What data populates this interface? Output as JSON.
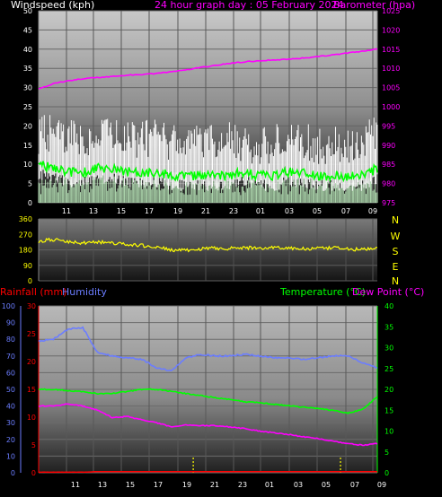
{
  "header": {
    "left_title": "Windspeed (kph)",
    "center_title": "24 hour graph day : 05 February 2024",
    "right_title": "Barometer (hpa)"
  },
  "wind_chart": {
    "title": "24 hour graph day : 05 February 2024",
    "left_axis_label": "Windspeed (kph)",
    "right_axis_label": "Barometer (hpa)",
    "x_ticks": [
      "11",
      "13",
      "15",
      "17",
      "19",
      "21",
      "23",
      "01",
      "03",
      "05",
      "07",
      "09"
    ],
    "left_ticks": [
      0,
      5,
      10,
      15,
      20,
      25,
      30,
      35,
      40,
      45,
      50
    ],
    "right_ticks": [
      975,
      980,
      985,
      990,
      995,
      1000,
      1005,
      1010,
      1015,
      1020,
      1025
    ],
    "colors": {
      "gust": "#ffffff",
      "avg_wind": "#00ff00",
      "light_wind": "#ccffcc",
      "barometer": "#ff00ff"
    },
    "chart_data": {
      "type": "line",
      "x": [
        "10:00",
        "11:00",
        "12:00",
        "13:00",
        "14:00",
        "15:00",
        "16:00",
        "17:00",
        "18:00",
        "19:00",
        "20:00",
        "21:00",
        "22:00",
        "23:00",
        "00:00",
        "01:00",
        "02:00",
        "03:00",
        "04:00",
        "05:00",
        "06:00",
        "07:00",
        "08:00",
        "09:00"
      ],
      "left_ylim": [
        0,
        50
      ],
      "right_ylim": [
        975,
        1025
      ],
      "series": [
        {
          "name": "Gust",
          "axis": "left",
          "values": [
            17,
            18,
            16,
            16,
            18,
            17,
            16,
            16,
            17,
            15,
            14,
            16,
            15,
            16,
            15,
            14,
            15,
            16,
            16,
            14,
            15,
            14,
            16,
            18
          ]
        },
        {
          "name": "Wind",
          "axis": "left",
          "values": [
            10,
            9,
            8,
            8,
            9,
            9,
            8,
            8,
            8,
            7,
            7,
            7,
            7,
            7,
            8,
            7,
            7,
            8,
            8,
            7,
            7,
            7,
            7,
            9
          ]
        },
        {
          "name": "Barometer",
          "axis": "right",
          "values": [
            1004.6,
            1006.0,
            1006.8,
            1007.3,
            1007.6,
            1007.9,
            1008.2,
            1008.4,
            1008.7,
            1009.1,
            1009.6,
            1010.2,
            1010.8,
            1011.3,
            1011.7,
            1012.0,
            1012.2,
            1012.4,
            1012.7,
            1013.1,
            1013.5,
            1014.0,
            1014.5,
            1015.0
          ]
        }
      ]
    }
  },
  "direction_chart": {
    "left_ticks": [
      0,
      90,
      180,
      270,
      360
    ],
    "right_labels": [
      "N",
      "W",
      "S",
      "E",
      "N"
    ],
    "series_color": "#ffff00",
    "chart_data": {
      "type": "line",
      "x": [
        "10:00",
        "11:00",
        "12:00",
        "13:00",
        "14:00",
        "15:00",
        "16:00",
        "17:00",
        "18:00",
        "19:00",
        "20:00",
        "21:00",
        "22:00",
        "23:00",
        "00:00",
        "01:00",
        "02:00",
        "03:00",
        "04:00",
        "05:00",
        "06:00",
        "07:00",
        "08:00",
        "09:00"
      ],
      "ylim": [
        0,
        360
      ],
      "series": [
        {
          "name": "Wind direction",
          "values": [
            230,
            240,
            225,
            220,
            225,
            220,
            210,
            205,
            195,
            180,
            175,
            185,
            190,
            188,
            192,
            190,
            195,
            190,
            185,
            188,
            190,
            185,
            182,
            188
          ]
        }
      ]
    }
  },
  "lower_chart": {
    "left_label_rain": "Rainfall (mm)",
    "left_label_humidity": "Humidity",
    "right_label_temp": "Temperature (°C)",
    "right_label_dew": "Dew Point (°C)",
    "x_ticks": [
      "11",
      "13",
      "15",
      "17",
      "19",
      "21",
      "23",
      "01",
      "03",
      "05",
      "07",
      "09"
    ],
    "humidity_ticks": [
      0,
      10,
      20,
      30,
      40,
      50,
      60,
      70,
      80,
      90,
      100
    ],
    "rain_ticks": [
      0,
      5,
      10,
      15,
      20,
      25,
      30
    ],
    "temp_ticks": [
      0,
      5,
      10,
      15,
      20,
      25,
      30,
      35,
      40
    ],
    "colors": {
      "rain": "#ff0000",
      "humidity": "#6b7dff",
      "temperature": "#00ff00",
      "dew_point": "#ff00ff",
      "rain_marker": "#ffff00"
    },
    "chart_data": {
      "type": "line",
      "x": [
        "10:00",
        "11:00",
        "12:00",
        "13:00",
        "14:00",
        "15:00",
        "16:00",
        "17:00",
        "18:00",
        "19:00",
        "20:00",
        "21:00",
        "22:00",
        "23:00",
        "00:00",
        "01:00",
        "02:00",
        "03:00",
        "04:00",
        "05:00",
        "06:00",
        "07:00",
        "08:00",
        "09:00"
      ],
      "humidity_ylim": [
        0,
        100
      ],
      "rain_ylim": [
        0,
        30
      ],
      "temp_ylim": [
        0,
        40
      ],
      "series": [
        {
          "name": "Humidity",
          "axis": "humidity",
          "values": [
            79,
            80,
            86,
            87,
            72,
            70,
            69,
            68,
            63,
            61,
            69,
            71,
            70,
            70,
            71,
            70,
            69,
            69,
            68,
            69,
            70,
            70,
            66,
            63
          ]
        },
        {
          "name": "Rainfall",
          "axis": "rain",
          "values": [
            0.1,
            0.1,
            0.1,
            0.1,
            0.2,
            0.2,
            0.2,
            0.2,
            0.2,
            0.2,
            0.2,
            0.2,
            0.2,
            0.2,
            0.2,
            0.2,
            0.2,
            0.2,
            0.2,
            0.2,
            0.2,
            0.2,
            0.2,
            0.2
          ]
        },
        {
          "name": "Temperature",
          "axis": "temp",
          "values": [
            20,
            20,
            19.7,
            19.4,
            19,
            19,
            19.5,
            20,
            20,
            19.5,
            19,
            18.5,
            18,
            17.6,
            17,
            16.8,
            16.4,
            16.1,
            15.7,
            15.4,
            15,
            14.3,
            15.2,
            18.2
          ]
        },
        {
          "name": "Dew Point",
          "axis": "temp",
          "values": [
            16,
            16,
            16.5,
            16,
            15,
            13.2,
            13.5,
            12.7,
            12,
            11,
            11.5,
            11.3,
            11.3,
            11,
            10.6,
            10,
            9.6,
            9.2,
            8.6,
            8.2,
            7.6,
            7,
            6.6,
            7
          ]
        }
      ]
    },
    "rain_markers_x": [
      "20:30",
      "06:30"
    ]
  }
}
